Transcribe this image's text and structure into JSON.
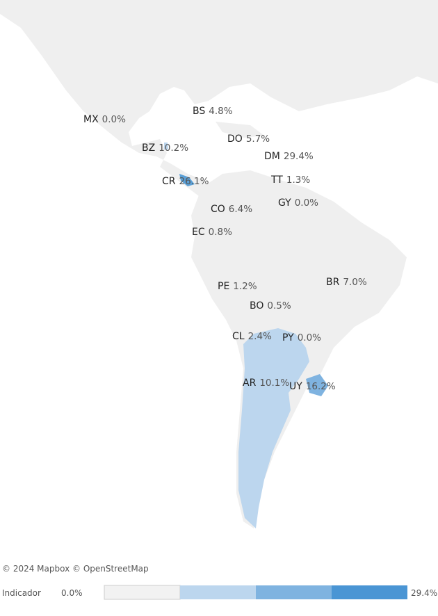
{
  "regions": [
    {
      "code": "MX",
      "value": "0.0%"
    },
    {
      "code": "BS",
      "value": "4.8%"
    },
    {
      "code": "DO",
      "value": "5.7%"
    },
    {
      "code": "BZ",
      "value": "10.2%"
    },
    {
      "code": "DM",
      "value": "29.4%"
    },
    {
      "code": "CR",
      "value": "26.1%"
    },
    {
      "code": "TT",
      "value": "1.3%"
    },
    {
      "code": "GY",
      "value": "0.0%"
    },
    {
      "code": "CO",
      "value": "6.4%"
    },
    {
      "code": "EC",
      "value": "0.8%"
    },
    {
      "code": "PE",
      "value": "1.2%"
    },
    {
      "code": "BR",
      "value": "7.0%"
    },
    {
      "code": "BO",
      "value": "0.5%"
    },
    {
      "code": "CL",
      "value": "2.4%"
    },
    {
      "code": "PY",
      "value": "0.0%"
    },
    {
      "code": "AR",
      "value": "10.1%"
    },
    {
      "code": "UY",
      "value": "16.2%"
    }
  ],
  "attribution": "© 2024 Mapbox © OpenStreetMap",
  "legend": {
    "title": "Indicador",
    "min": "0.0%",
    "max": "29.4%"
  }
}
